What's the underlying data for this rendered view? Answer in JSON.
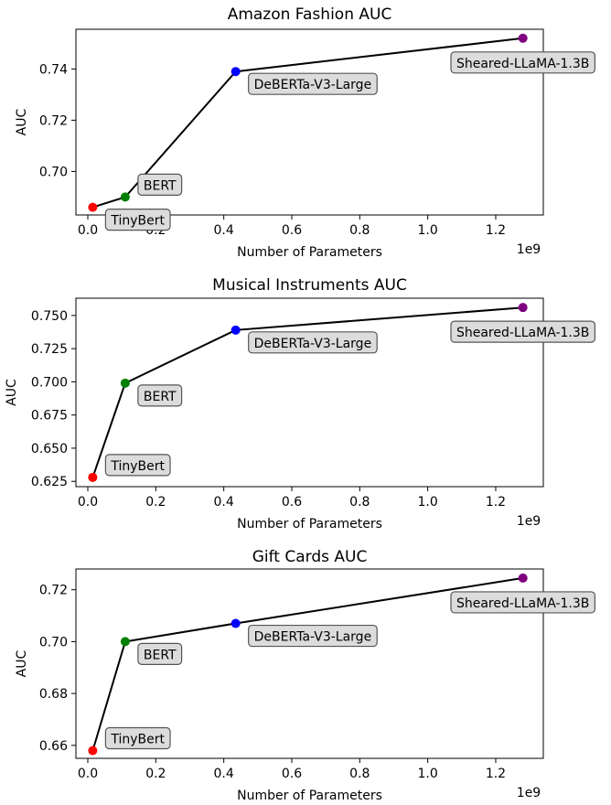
{
  "figure": {
    "x_multiplier": "1e9"
  },
  "chart_data": [
    {
      "type": "line",
      "title": "Amazon Fashion AUC",
      "xlabel": "Number of Parameters",
      "ylabel": "AUC",
      "xlim": [
        -0.035,
        1.34
      ],
      "ylim": [
        0.683,
        0.7555
      ],
      "xticks": [
        0.0,
        0.2,
        0.4,
        0.6,
        0.8,
        1.0,
        1.2
      ],
      "xtick_labels": [
        "0.0",
        "0.2",
        "0.4",
        "0.6",
        "0.8",
        "1.0",
        "1.2"
      ],
      "yticks": [
        0.7,
        0.72,
        0.74
      ],
      "ytick_labels": [
        "0.70",
        "0.72",
        "0.74"
      ],
      "grid": false,
      "legend": "none",
      "points": [
        {
          "model": "TinyBert",
          "x": 0.0145,
          "y": 0.686,
          "color": "#ff0000",
          "label_pos": "below-right"
        },
        {
          "model": "BERT",
          "x": 0.11,
          "y": 0.69,
          "color": "#008000",
          "label_pos": "above-right"
        },
        {
          "model": "DeBERTa-V3-Large",
          "x": 0.435,
          "y": 0.739,
          "color": "#0000ff",
          "label_pos": "below-right"
        },
        {
          "model": "Sheared-LLaMA-1.3B",
          "x": 1.28,
          "y": 0.752,
          "color": "#800080",
          "label_pos": "below"
        }
      ]
    },
    {
      "type": "line",
      "title": "Musical Instruments AUC",
      "xlabel": "Number of Parameters",
      "ylabel": "AUC",
      "xlim": [
        -0.035,
        1.34
      ],
      "ylim": [
        0.621,
        0.763
      ],
      "xticks": [
        0.0,
        0.2,
        0.4,
        0.6,
        0.8,
        1.0,
        1.2
      ],
      "xtick_labels": [
        "0.0",
        "0.2",
        "0.4",
        "0.6",
        "0.8",
        "1.0",
        "1.2"
      ],
      "yticks": [
        0.625,
        0.65,
        0.675,
        0.7,
        0.725,
        0.75
      ],
      "ytick_labels": [
        "0.625",
        "0.650",
        "0.675",
        "0.700",
        "0.725",
        "0.750"
      ],
      "grid": false,
      "legend": "none",
      "points": [
        {
          "model": "TinyBert",
          "x": 0.0145,
          "y": 0.628,
          "color": "#ff0000",
          "label_pos": "above-right"
        },
        {
          "model": "BERT",
          "x": 0.11,
          "y": 0.699,
          "color": "#008000",
          "label_pos": "below-right"
        },
        {
          "model": "DeBERTa-V3-Large",
          "x": 0.435,
          "y": 0.739,
          "color": "#0000ff",
          "label_pos": "below-right"
        },
        {
          "model": "Sheared-LLaMA-1.3B",
          "x": 1.28,
          "y": 0.756,
          "color": "#800080",
          "label_pos": "below"
        }
      ]
    },
    {
      "type": "line",
      "title": "Gift Cards AUC",
      "xlabel": "Number of Parameters",
      "ylabel": "AUC",
      "xlim": [
        -0.035,
        1.34
      ],
      "ylim": [
        0.655,
        0.728
      ],
      "xticks": [
        0.0,
        0.2,
        0.4,
        0.6,
        0.8,
        1.0,
        1.2
      ],
      "xtick_labels": [
        "0.0",
        "0.2",
        "0.4",
        "0.6",
        "0.8",
        "1.0",
        "1.2"
      ],
      "yticks": [
        0.66,
        0.68,
        0.7,
        0.72
      ],
      "ytick_labels": [
        "0.66",
        "0.68",
        "0.70",
        "0.72"
      ],
      "grid": false,
      "legend": "none",
      "points": [
        {
          "model": "TinyBert",
          "x": 0.0145,
          "y": 0.658,
          "color": "#ff0000",
          "label_pos": "above-right"
        },
        {
          "model": "BERT",
          "x": 0.11,
          "y": 0.7,
          "color": "#008000",
          "label_pos": "below-right"
        },
        {
          "model": "DeBERTa-V3-Large",
          "x": 0.435,
          "y": 0.707,
          "color": "#0000ff",
          "label_pos": "below-right"
        },
        {
          "model": "Sheared-LLaMA-1.3B",
          "x": 1.28,
          "y": 0.7245,
          "color": "#800080",
          "label_pos": "below"
        }
      ]
    }
  ]
}
